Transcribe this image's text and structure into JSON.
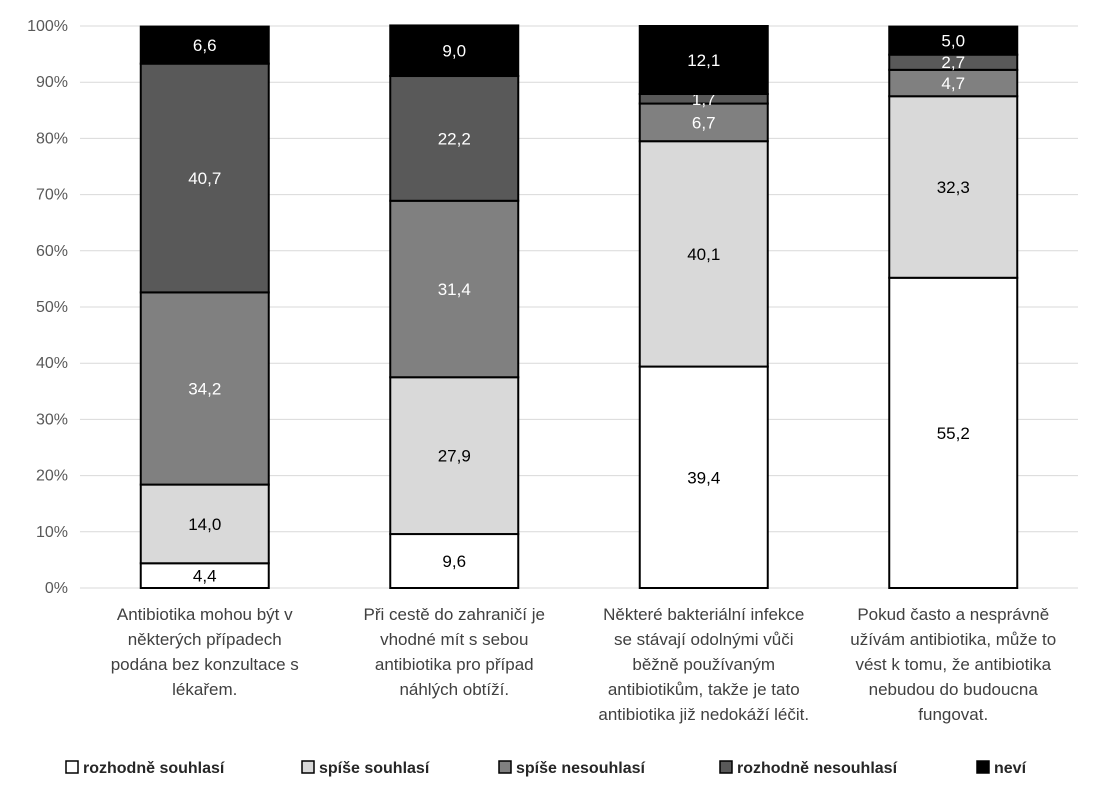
{
  "chart_data": {
    "type": "bar",
    "stacked": true,
    "ylim": [
      0,
      100
    ],
    "yticks": [
      "0%",
      "10%",
      "20%",
      "30%",
      "40%",
      "50%",
      "60%",
      "70%",
      "80%",
      "90%",
      "100%"
    ],
    "grid": true,
    "legend_position": "bottom",
    "categories": [
      [
        "Antibiotika mohou být v",
        "některých případech",
        "podána bez konzultace s",
        "lékařem."
      ],
      [
        "Při cestě do zahraničí je",
        "vhodné mít s sebou",
        "antibiotika pro případ",
        "náhlých obtíží."
      ],
      [
        "Některé bakteriální infekce",
        "se stávají odolnými vůči",
        "běžně používaným",
        "antibiotikům, takže je tato",
        "antibiotika již nedokáží léčit."
      ],
      [
        "Pokud často a nesprávně",
        "užívám antibiotika, může to",
        "vést k tomu, že antibiotika",
        "nebudou do budoucna",
        "fungovat."
      ]
    ],
    "series": [
      {
        "name": "rozhodně souhlasí",
        "color": "#ffffff",
        "label_color": "#000000",
        "values": [
          4.4,
          9.6,
          39.4,
          55.2
        ],
        "labels": [
          "4,4",
          "9,6",
          "39,4",
          "55,2"
        ]
      },
      {
        "name": "spíše souhlasí",
        "color": "#d9d9d9",
        "label_color": "#000000",
        "values": [
          14.0,
          27.9,
          40.1,
          32.3
        ],
        "labels": [
          "14,0",
          "27,9",
          "40,1",
          "32,3"
        ]
      },
      {
        "name": "spíše nesouhlasí",
        "color": "#808080",
        "label_color": "#ffffff",
        "values": [
          34.2,
          31.4,
          6.7,
          4.7
        ],
        "labels": [
          "34,2",
          "31,4",
          "6,7",
          "4,7"
        ]
      },
      {
        "name": "rozhodně nesouhlasí",
        "color": "#595959",
        "label_color": "#ffffff",
        "values": [
          40.7,
          22.2,
          1.7,
          2.7
        ],
        "labels": [
          "40,7",
          "22,2",
          "1,7",
          "2,7"
        ]
      },
      {
        "name": "neví",
        "color": "#000000",
        "label_color": "#ffffff",
        "values": [
          6.6,
          9.0,
          12.1,
          5.0
        ],
        "labels": [
          "6,6",
          "9,0",
          "12,1",
          "5,0"
        ]
      }
    ]
  }
}
